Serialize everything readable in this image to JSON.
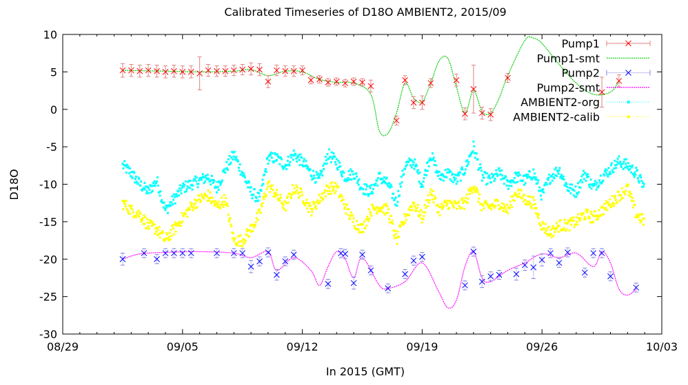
{
  "chart_data": {
    "type": "scatter",
    "title": "Calibrated Timeseries of D18O AMBIENT2, 2015/09",
    "xlabel": "In 2015 (GMT)",
    "ylabel": "D18O",
    "xlim": [
      "2015-08-29",
      "2015-10-03"
    ],
    "ylim": [
      -30,
      10
    ],
    "xticks": [
      "08/29",
      "09/05",
      "09/12",
      "09/19",
      "09/26",
      "10/03"
    ],
    "yticks": [
      "-30",
      "-25",
      "-20",
      "-15",
      "-10",
      "-5",
      "0",
      "5",
      "10"
    ],
    "legend_position": "top-right",
    "grid": false,
    "series": [
      {
        "name": "Pump1",
        "style": "points-errorbars",
        "color": "#ff0000",
        "x": [
          "2015-09-01 12:00",
          "2015-09-02 00:00",
          "2015-09-02 12:00",
          "2015-09-03 00:00",
          "2015-09-03 12:00",
          "2015-09-04 00:00",
          "2015-09-04 12:00",
          "2015-09-05 00:00",
          "2015-09-05 12:00",
          "2015-09-06 00:00",
          "2015-09-06 12:00",
          "2015-09-07 00:00",
          "2015-09-07 12:00",
          "2015-09-08 00:00",
          "2015-09-08 12:00",
          "2015-09-09 00:00",
          "2015-09-09 12:00",
          "2015-09-10 00:00",
          "2015-09-10 12:00",
          "2015-09-11 00:00",
          "2015-09-11 12:00",
          "2015-09-12 00:00",
          "2015-09-12 12:00",
          "2015-09-13 00:00",
          "2015-09-13 12:00",
          "2015-09-14 00:00",
          "2015-09-14 12:00",
          "2015-09-15 00:00",
          "2015-09-15 12:00",
          "2015-09-16 00:00",
          "2015-09-17 12:00",
          "2015-09-18 00:00",
          "2015-09-18 12:00",
          "2015-09-19 00:00",
          "2015-09-19 12:00",
          "2015-09-21 00:00",
          "2015-09-21 12:00",
          "2015-09-22 00:00",
          "2015-09-22 12:00",
          "2015-09-23 00:00",
          "2015-09-24 00:00",
          "2015-09-29 12:00",
          "2015-09-30 12:00"
        ],
        "y": [
          5.2,
          5.2,
          5.1,
          5.2,
          5.1,
          5.0,
          5.1,
          5.0,
          5.0,
          4.8,
          5.2,
          5.1,
          5.1,
          5.2,
          5.3,
          5.4,
          5.3,
          3.7,
          5.2,
          5.1,
          5.1,
          5.2,
          3.9,
          4.0,
          3.6,
          3.7,
          3.5,
          3.7,
          3.6,
          3.1,
          -1.5,
          3.9,
          0.9,
          0.9,
          3.5,
          3.9,
          -0.6,
          2.7,
          -0.5,
          -0.7,
          4.2,
          2.3,
          3.8
        ],
        "err": [
          0.9,
          0.8,
          0.8,
          0.8,
          0.8,
          0.8,
          0.8,
          0.8,
          0.8,
          2.2,
          0.8,
          0.7,
          0.7,
          0.7,
          0.7,
          0.8,
          0.8,
          0.8,
          0.7,
          0.7,
          0.7,
          0.6,
          0.5,
          0.5,
          0.5,
          0.5,
          0.5,
          0.5,
          0.5,
          0.8,
          0.6,
          0.6,
          0.8,
          0.9,
          0.6,
          0.8,
          0.8,
          3.2,
          0.8,
          0.8,
          0.6,
          2.0,
          0.8
        ]
      },
      {
        "name": "Pump1-smt",
        "style": "dashed-line",
        "color": "#00cc00",
        "x": [
          "2015-09-01 12:00",
          "2015-09-04 00:00",
          "2015-09-06 00:00",
          "2015-09-08 00:00",
          "2015-09-09 00:00",
          "2015-09-10 00:00",
          "2015-09-11 00:00",
          "2015-09-12 00:00",
          "2015-09-13 00:00",
          "2015-09-14 00:00",
          "2015-09-15 00:00",
          "2015-09-16 00:00",
          "2015-09-16 12:00",
          "2015-09-17 00:00",
          "2015-09-17 12:00",
          "2015-09-18 00:00",
          "2015-09-18 12:00",
          "2015-09-19 00:00",
          "2015-09-19 12:00",
          "2015-09-20 00:00",
          "2015-09-20 12:00",
          "2015-09-21 00:00",
          "2015-09-21 12:00",
          "2015-09-22 00:00",
          "2015-09-22 12:00",
          "2015-09-23 00:00",
          "2015-09-23 12:00",
          "2015-09-24 00:00",
          "2015-09-25 00:00",
          "2015-09-25 12:00",
          "2015-09-26 00:00",
          "2015-09-27 00:00",
          "2015-09-28 00:00",
          "2015-09-29 00:00",
          "2015-09-30 00:00",
          "2015-09-30 12:00"
        ],
        "y": [
          5.2,
          5.1,
          5.0,
          5.1,
          5.3,
          4.5,
          5.1,
          5.0,
          4.0,
          3.6,
          3.5,
          2.0,
          -2.9,
          -3.2,
          -0.5,
          3.5,
          1.5,
          1.0,
          3.5,
          6.5,
          6.8,
          3.0,
          -0.5,
          2.5,
          -0.3,
          -0.5,
          1.5,
          4.5,
          9.2,
          9.5,
          8.8,
          6.0,
          3.5,
          2.0,
          2.3,
          3.8
        ]
      },
      {
        "name": "Pump2",
        "style": "points-errorbars",
        "color": "#0000ff",
        "x": [
          "2015-09-01 12:00",
          "2015-09-02 18:00",
          "2015-09-03 12:00",
          "2015-09-04 00:00",
          "2015-09-04 12:00",
          "2015-09-05 00:00",
          "2015-09-05 12:00",
          "2015-09-07 00:00",
          "2015-09-08 00:00",
          "2015-09-08 12:00",
          "2015-09-09 00:00",
          "2015-09-09 12:00",
          "2015-09-10 00:00",
          "2015-09-10 12:00",
          "2015-09-11 00:00",
          "2015-09-11 12:00",
          "2015-09-13 12:00",
          "2015-09-14 06:00",
          "2015-09-14 12:00",
          "2015-09-15 00:00",
          "2015-09-15 12:00",
          "2015-09-16 00:00",
          "2015-09-17 00:00",
          "2015-09-18 00:00",
          "2015-09-18 12:00",
          "2015-09-19 00:00",
          "2015-09-21 12:00",
          "2015-09-22 00:00",
          "2015-09-22 12:00",
          "2015-09-23 00:00",
          "2015-09-23 12:00",
          "2015-09-24 12:00",
          "2015-09-25 00:00",
          "2015-09-25 12:00",
          "2015-09-26 00:00",
          "2015-09-26 12:00",
          "2015-09-27 00:00",
          "2015-09-27 12:00",
          "2015-09-28 12:00",
          "2015-09-29 00:00",
          "2015-09-29 12:00",
          "2015-09-30 00:00",
          "2015-10-01 12:00"
        ],
        "y": [
          -20.0,
          -19.2,
          -20.0,
          -19.2,
          -19.2,
          -19.2,
          -19.2,
          -19.2,
          -19.2,
          -19.2,
          -21.0,
          -20.3,
          -19.1,
          -22.1,
          -20.3,
          -19.4,
          -23.3,
          -19.2,
          -19.3,
          -23.2,
          -19.4,
          -21.5,
          -23.9,
          -22.0,
          -20.2,
          -19.7,
          -23.5,
          -19.0,
          -23.0,
          -22.3,
          -22.1,
          -22.0,
          -20.8,
          -21.1,
          -20.1,
          -19.2,
          -20.5,
          -19.1,
          -21.8,
          -19.2,
          -19.2,
          -22.3,
          -23.8
        ],
        "err": [
          0.8,
          0.6,
          0.6,
          0.6,
          0.6,
          0.6,
          0.6,
          0.6,
          0.6,
          0.6,
          0.8,
          0.6,
          0.6,
          0.7,
          0.6,
          0.6,
          0.6,
          0.6,
          0.6,
          0.8,
          0.6,
          0.6,
          0.6,
          0.6,
          0.6,
          0.6,
          0.6,
          0.6,
          0.8,
          0.6,
          0.6,
          0.8,
          0.7,
          1.5,
          0.8,
          0.6,
          0.6,
          0.6,
          0.6,
          0.6,
          0.6,
          0.6,
          0.6
        ]
      },
      {
        "name": "Pump2-smt",
        "style": "dashed-line",
        "color": "#ff00ff",
        "x": [
          "2015-09-01 12:00",
          "2015-09-02 12:00",
          "2015-09-04 00:00",
          "2015-09-06 00:00",
          "2015-09-08 00:00",
          "2015-09-09 00:00",
          "2015-09-10 00:00",
          "2015-09-10 12:00",
          "2015-09-11 12:00",
          "2015-09-12 12:00",
          "2015-09-13 00:00",
          "2015-09-13 12:00",
          "2015-09-14 00:00",
          "2015-09-14 12:00",
          "2015-09-15 00:00",
          "2015-09-15 12:00",
          "2015-09-16 12:00",
          "2015-09-17 00:00",
          "2015-09-18 00:00",
          "2015-09-19 00:00",
          "2015-09-20 00:00",
          "2015-09-20 12:00",
          "2015-09-21 00:00",
          "2015-09-21 12:00",
          "2015-09-22 00:00",
          "2015-09-22 12:00",
          "2015-09-23 00:00",
          "2015-09-24 00:00",
          "2015-09-25 00:00",
          "2015-09-26 00:00",
          "2015-09-27 00:00",
          "2015-09-28 00:00",
          "2015-09-29 00:00",
          "2015-09-29 12:00",
          "2015-09-30 00:00",
          "2015-09-30 12:00",
          "2015-10-01 00:00",
          "2015-10-01 12:00"
        ],
        "y": [
          -20.0,
          -19.3,
          -19.1,
          -19.0,
          -19.2,
          -19.8,
          -19.0,
          -21.5,
          -19.8,
          -21.5,
          -23.5,
          -21.0,
          -19.0,
          -20.0,
          -22.5,
          -19.8,
          -23.5,
          -23.9,
          -23.0,
          -20.5,
          -24.5,
          -26.5,
          -25.5,
          -21.0,
          -19.0,
          -22.5,
          -23.0,
          -21.5,
          -20.5,
          -19.3,
          -19.8,
          -19.2,
          -21.0,
          -19.0,
          -20.5,
          -24.0,
          -24.8,
          -24.0
        ]
      },
      {
        "name": "AMBIENT2-org",
        "style": "small-points",
        "color": "#00ffff",
        "x": [
          "2015-09-01 12:00",
          "2015-09-02 00:00",
          "2015-09-02 12:00",
          "2015-09-03 00:00",
          "2015-09-03 12:00",
          "2015-09-04 00:00",
          "2015-09-04 12:00",
          "2015-09-05 00:00",
          "2015-09-05 12:00",
          "2015-09-06 00:00",
          "2015-09-06 12:00",
          "2015-09-07 00:00",
          "2015-09-07 12:00",
          "2015-09-08 00:00",
          "2015-09-08 12:00",
          "2015-09-09 00:00",
          "2015-09-09 12:00",
          "2015-09-10 00:00",
          "2015-09-10 12:00",
          "2015-09-11 00:00",
          "2015-09-11 12:00",
          "2015-09-12 00:00",
          "2015-09-12 12:00",
          "2015-09-13 00:00",
          "2015-09-13 12:00",
          "2015-09-14 00:00",
          "2015-09-14 12:00",
          "2015-09-15 00:00",
          "2015-09-15 12:00",
          "2015-09-16 00:00",
          "2015-09-16 12:00",
          "2015-09-17 00:00",
          "2015-09-17 12:00",
          "2015-09-18 00:00",
          "2015-09-18 12:00",
          "2015-09-19 00:00",
          "2015-09-19 12:00",
          "2015-09-20 00:00",
          "2015-09-20 12:00",
          "2015-09-21 00:00",
          "2015-09-21 12:00",
          "2015-09-22 00:00",
          "2015-09-22 12:00",
          "2015-09-23 00:00",
          "2015-09-23 12:00",
          "2015-09-24 00:00",
          "2015-09-24 12:00",
          "2015-09-25 00:00",
          "2015-09-25 12:00",
          "2015-09-26 00:00",
          "2015-09-26 12:00",
          "2015-09-27 00:00",
          "2015-09-27 12:00",
          "2015-09-28 00:00",
          "2015-09-28 12:00",
          "2015-09-29 00:00",
          "2015-09-29 12:00",
          "2015-09-30 00:00",
          "2015-09-30 12:00",
          "2015-10-01 00:00",
          "2015-10-01 12:00",
          "2015-10-02 00:00"
        ],
        "y": [
          -7.5,
          -8.5,
          -10.0,
          -11.0,
          -9.5,
          -13.5,
          -12.0,
          -10.5,
          -10.0,
          -9.5,
          -9.0,
          -10.5,
          -8.0,
          -6.0,
          -8.5,
          -11.0,
          -12.0,
          -6.5,
          -6.5,
          -7.5,
          -6.0,
          -7.0,
          -8.5,
          -9.5,
          -6.0,
          -7.0,
          -9.0,
          -8.5,
          -10.5,
          -11.0,
          -9.0,
          -10.0,
          -12.5,
          -7.5,
          -7.0,
          -10.0,
          -6.0,
          -9.0,
          -8.5,
          -9.5,
          -8.0,
          -5.0,
          -9.0,
          -9.5,
          -8.5,
          -10.0,
          -9.0,
          -9.5,
          -8.5,
          -11.5,
          -9.0,
          -8.0,
          -10.5,
          -11.0,
          -8.5,
          -10.5,
          -9.0,
          -8.0,
          -7.0,
          -7.5,
          -8.5,
          -10.5
        ]
      },
      {
        "name": "AMBIENT2-calib",
        "style": "small-points",
        "color": "#ffff00",
        "x": [
          "2015-09-01 12:00",
          "2015-09-02 00:00",
          "2015-09-02 12:00",
          "2015-09-03 00:00",
          "2015-09-03 12:00",
          "2015-09-04 00:00",
          "2015-09-04 12:00",
          "2015-09-05 00:00",
          "2015-09-05 12:00",
          "2015-09-06 00:00",
          "2015-09-06 12:00",
          "2015-09-07 00:00",
          "2015-09-07 12:00",
          "2015-09-08 00:00",
          "2015-09-08 12:00",
          "2015-09-09 00:00",
          "2015-09-09 12:00",
          "2015-09-10 00:00",
          "2015-09-10 12:00",
          "2015-09-11 00:00",
          "2015-09-11 12:00",
          "2015-09-12 00:00",
          "2015-09-12 12:00",
          "2015-09-13 00:00",
          "2015-09-13 12:00",
          "2015-09-14 00:00",
          "2015-09-14 12:00",
          "2015-09-15 00:00",
          "2015-09-15 12:00",
          "2015-09-16 00:00",
          "2015-09-16 12:00",
          "2015-09-17 00:00",
          "2015-09-17 12:00",
          "2015-09-18 00:00",
          "2015-09-18 12:00",
          "2015-09-19 00:00",
          "2015-09-19 12:00",
          "2015-09-20 00:00",
          "2015-09-20 12:00",
          "2015-09-21 00:00",
          "2015-09-21 12:00",
          "2015-09-22 00:00",
          "2015-09-22 12:00",
          "2015-09-23 00:00",
          "2015-09-23 12:00",
          "2015-09-24 00:00",
          "2015-09-24 12:00",
          "2015-09-25 00:00",
          "2015-09-25 12:00",
          "2015-09-26 00:00",
          "2015-09-26 12:00",
          "2015-09-27 00:00",
          "2015-09-27 12:00",
          "2015-09-28 00:00",
          "2015-09-28 12:00",
          "2015-09-29 00:00",
          "2015-09-29 12:00",
          "2015-09-30 00:00",
          "2015-09-30 12:00",
          "2015-10-01 00:00",
          "2015-10-01 12:00",
          "2015-10-02 00:00"
        ],
        "y": [
          -12.5,
          -13.5,
          -14.0,
          -15.5,
          -16.0,
          -17.5,
          -16.0,
          -14.5,
          -13.0,
          -12.0,
          -11.5,
          -13.0,
          -12.0,
          -17.5,
          -17.5,
          -16.0,
          -14.0,
          -10.0,
          -11.5,
          -13.0,
          -10.5,
          -11.5,
          -13.5,
          -12.0,
          -10.5,
          -10.5,
          -13.0,
          -15.0,
          -16.0,
          -13.5,
          -13.0,
          -13.5,
          -17.5,
          -14.5,
          -12.5,
          -14.5,
          -11.0,
          -13.5,
          -12.5,
          -13.0,
          -12.5,
          -10.0,
          -13.0,
          -13.0,
          -12.5,
          -13.5,
          -11.0,
          -12.0,
          -12.5,
          -15.5,
          -16.5,
          -15.5,
          -15.5,
          -15.0,
          -14.0,
          -14.5,
          -13.5,
          -12.5,
          -11.5,
          -10.5,
          -14.0,
          -15.0
        ]
      }
    ]
  }
}
